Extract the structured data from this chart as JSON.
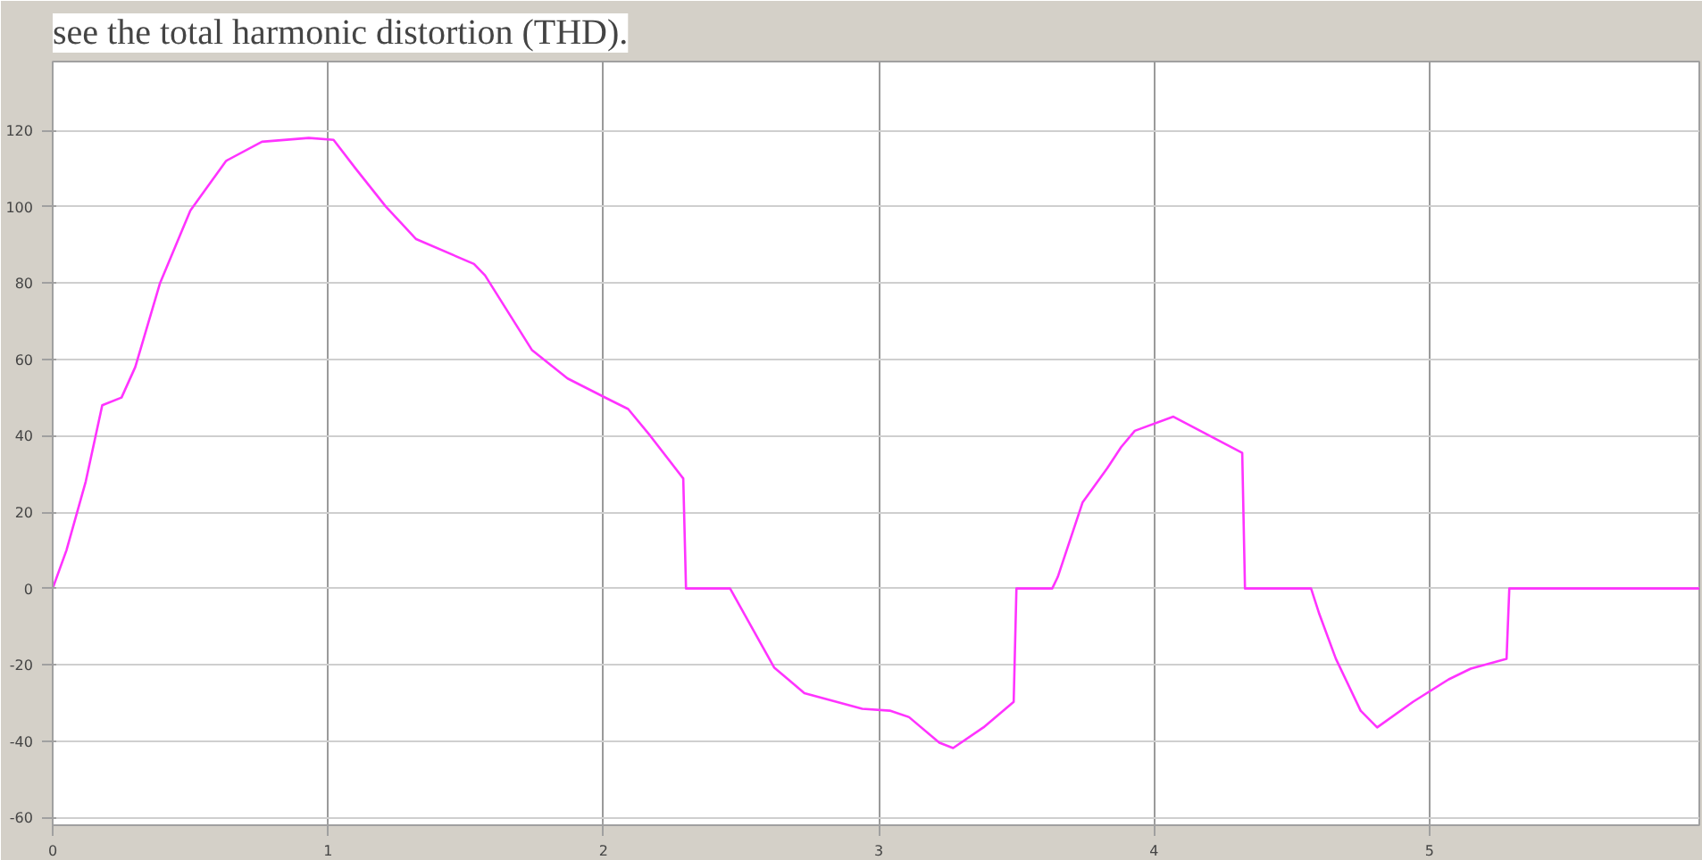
{
  "chart_data": {
    "type": "line",
    "title": "see the total harmonic distortion (THD).",
    "x": [
      0,
      0.05,
      0.12,
      0.18,
      0.25,
      0.3,
      0.39,
      0.5,
      0.63,
      0.76,
      0.93,
      1.02,
      1.1,
      1.21,
      1.32,
      1.53,
      1.57,
      1.74,
      1.87,
      2.02,
      2.09,
      2.17,
      2.29,
      2.3,
      2.46,
      2.62,
      2.73,
      2.94,
      3.04,
      3.11,
      3.22,
      3.27,
      3.38,
      3.49,
      3.5,
      3.63,
      3.65,
      3.74,
      3.83,
      3.88,
      3.93,
      4.07,
      4.32,
      4.33,
      4.57,
      4.6,
      4.66,
      4.75,
      4.81,
      4.94,
      5.07,
      5.15,
      5.28,
      5.29,
      5.98
    ],
    "series": [
      {
        "color": "#ff33ff",
        "values": [
          0,
          10,
          28,
          48,
          50,
          58,
          80,
          99,
          112,
          117,
          118,
          117.5,
          110,
          100,
          91.5,
          85,
          82,
          62.5,
          55,
          49.5,
          47,
          40,
          28.8,
          0,
          0,
          -20.7,
          -27.4,
          -31.5,
          -32,
          -33.7,
          -40.4,
          -41.8,
          -36.4,
          -29.7,
          0,
          0,
          3,
          22.5,
          31.5,
          37,
          41.3,
          45,
          35.5,
          0,
          0,
          -6.7,
          -18.4,
          -32,
          -36.4,
          -29.7,
          -23.8,
          -21,
          -18.4,
          0,
          0
        ]
      }
    ],
    "xlim": [
      0,
      5.98
    ],
    "ylim": [
      -62,
      138
    ],
    "xticks": [
      0,
      1,
      2,
      3,
      4,
      5
    ],
    "yticks": [
      -60,
      -40,
      -20,
      0,
      20,
      40,
      60,
      80,
      100,
      120
    ],
    "grid": true,
    "marker": "none",
    "line_style": "solid"
  }
}
